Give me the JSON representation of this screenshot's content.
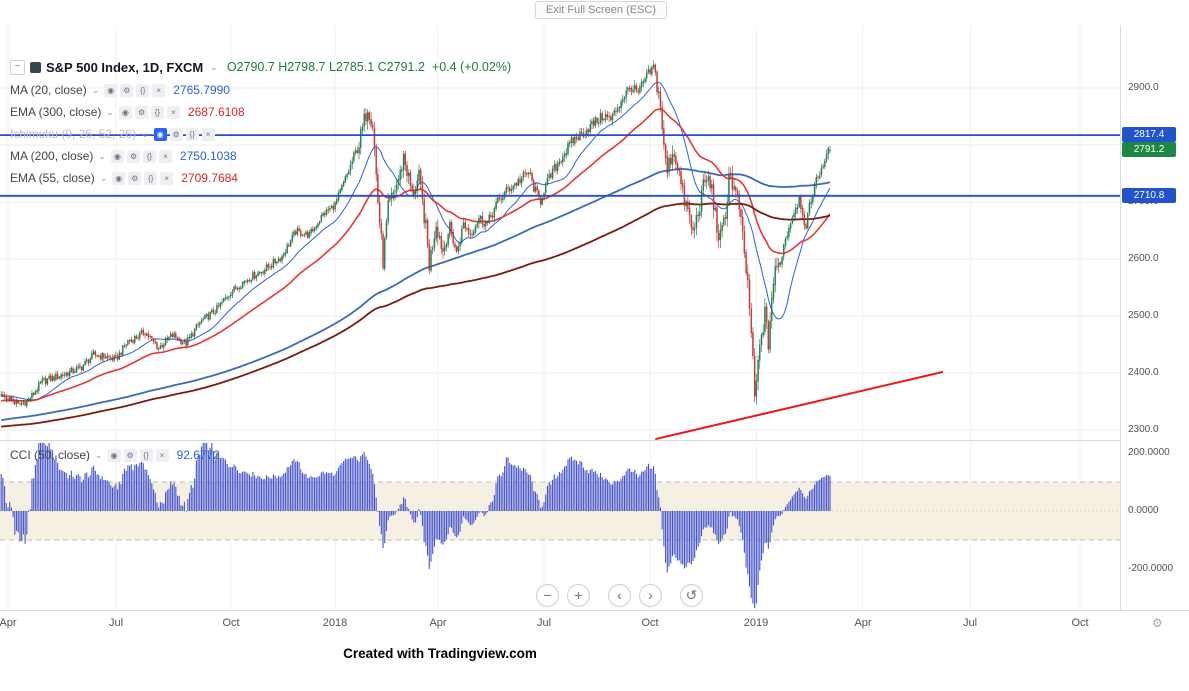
{
  "window": {
    "exit_fullscreen_label": "Exit Full Screen (ESC)"
  },
  "legend": {
    "collapse_glyph": "−",
    "chevron_glyph": "⌄",
    "symbol": {
      "title": "S&P 500 Index, 1D, FXCM",
      "ohlc": "O2790.7 H2798.7 L2785.1 C2791.2",
      "change": "+0.4 (+0.02%)",
      "value_color": "#1a7d3c"
    },
    "row_icons": [
      {
        "name": "visibility-icon",
        "glyph": "◉"
      },
      {
        "name": "settings-icon",
        "glyph": "⚙"
      },
      {
        "name": "source-icon",
        "glyph": "{}"
      },
      {
        "name": "delete-icon",
        "glyph": "×"
      }
    ],
    "indicators": [
      {
        "name": "MA (20, close)",
        "value": "2765.7990",
        "value_color": "#2a63d6",
        "muted": false
      },
      {
        "name": "EMA (300, close)",
        "value": "2687.6108",
        "value_color": "#d32b2b",
        "muted": false
      },
      {
        "name": "Ichimoku (9, 26, 52, 26)",
        "value": "",
        "value_color": "#b9bcc2",
        "muted": true
      },
      {
        "name": "MA (200, close)",
        "value": "2750.1038",
        "value_color": "#2a63d6",
        "muted": false
      },
      {
        "name": "EMA (55, close)",
        "value": "2709.7684",
        "value_color": "#d32b2b",
        "muted": false
      }
    ],
    "cci_row": {
      "name": "CCI (50, close)",
      "value": "92.6772",
      "value_color": "#2a63d6",
      "muted": false
    }
  },
  "axes": {
    "price_labels": [
      {
        "t": "2900.0",
        "v": 2900
      },
      {
        "t": "2800.0",
        "v": 2800
      },
      {
        "t": "2700.0",
        "v": 2700
      },
      {
        "t": "2600.0",
        "v": 2600
      },
      {
        "t": "2500.0",
        "v": 2500
      },
      {
        "t": "2400.0",
        "v": 2400
      },
      {
        "t": "2300.0",
        "v": 2300
      }
    ],
    "cci_labels": [
      {
        "t": "200.0000",
        "v": 200
      },
      {
        "t": "0.0000",
        "v": 0
      },
      {
        "t": "-200.0000",
        "v": -200
      }
    ],
    "time_labels": [
      {
        "label": "Apr",
        "day": 0
      },
      {
        "label": "Jul",
        "day": 63
      },
      {
        "label": "Oct",
        "day": 130
      },
      {
        "label": "2018",
        "day": 191
      },
      {
        "label": "Apr",
        "day": 251
      },
      {
        "label": "Jul",
        "day": 313
      },
      {
        "label": "Oct",
        "day": 375
      },
      {
        "label": "2019",
        "day": 437
      },
      {
        "label": "Apr",
        "day": 499
      },
      {
        "label": "Jul",
        "day": 562
      },
      {
        "label": "Oct",
        "day": 626
      }
    ],
    "settings_icon_glyph": "⚙"
  },
  "badges": [
    {
      "t": "2817.4",
      "v": 2817.4,
      "color": "#2353cc"
    },
    {
      "t": "2791.2",
      "v": 2791.2,
      "color": "#1d8746"
    },
    {
      "t": "2710.8",
      "v": 2710.8,
      "color": "#2353cc"
    }
  ],
  "toolbar": {
    "zoom_out": "−",
    "zoom_in": "+",
    "scroll_left": "‹",
    "scroll_right": "›",
    "reset": "↺"
  },
  "footer": {
    "credit": "Created with Tradingview.com"
  },
  "chart_data": {
    "type": "candlestick+histogram",
    "symbol": "S&P 500 Index",
    "timeframe": "1D",
    "exchange": "FXCM",
    "price_range_shown": [
      2300,
      2940
    ],
    "cci_range_shown": [
      -300,
      245
    ],
    "last_candle": {
      "o": 2790.7,
      "h": 2798.7,
      "l": 2785.1,
      "c": 2791.2
    },
    "candle_colors": {
      "up": "#1e8c4f",
      "up_border": "#156038",
      "down": "#df342f",
      "down_border": "#a8241f"
    },
    "prehistory_anchors": [
      [
        -320,
        2240
      ],
      [
        -260,
        2232
      ],
      [
        -200,
        2268
      ],
      [
        -140,
        2300
      ],
      [
        -80,
        2332
      ],
      [
        -30,
        2352
      ],
      [
        -10,
        2360
      ]
    ],
    "price_path_anchors": [
      [
        0,
        2357
      ],
      [
        6,
        2344
      ],
      [
        12,
        2352
      ],
      [
        20,
        2385
      ],
      [
        30,
        2395
      ],
      [
        42,
        2408
      ],
      [
        50,
        2432
      ],
      [
        58,
        2428
      ],
      [
        63,
        2424
      ],
      [
        70,
        2455
      ],
      [
        80,
        2472
      ],
      [
        88,
        2444
      ],
      [
        96,
        2466
      ],
      [
        104,
        2452
      ],
      [
        112,
        2488
      ],
      [
        122,
        2512
      ],
      [
        130,
        2542
      ],
      [
        140,
        2565
      ],
      [
        150,
        2582
      ],
      [
        160,
        2605
      ],
      [
        168,
        2648
      ],
      [
        176,
        2642
      ],
      [
        184,
        2678
      ],
      [
        191,
        2695
      ],
      [
        198,
        2748
      ],
      [
        205,
        2802
      ],
      [
        210,
        2868
      ],
      [
        213,
        2838
      ],
      [
        216,
        2702
      ],
      [
        219,
        2596
      ],
      [
        222,
        2688
      ],
      [
        226,
        2722
      ],
      [
        229,
        2748
      ],
      [
        231,
        2782
      ],
      [
        236,
        2714
      ],
      [
        240,
        2742
      ],
      [
        244,
        2654
      ],
      [
        246,
        2590
      ],
      [
        250,
        2664
      ],
      [
        254,
        2614
      ],
      [
        258,
        2656
      ],
      [
        262,
        2610
      ],
      [
        266,
        2662
      ],
      [
        270,
        2644
      ],
      [
        275,
        2672
      ],
      [
        280,
        2662
      ],
      [
        286,
        2700
      ],
      [
        292,
        2722
      ],
      [
        298,
        2736
      ],
      [
        304,
        2752
      ],
      [
        308,
        2718
      ],
      [
        311,
        2702
      ],
      [
        313,
        2722
      ],
      [
        318,
        2752
      ],
      [
        324,
        2782
      ],
      [
        330,
        2808
      ],
      [
        336,
        2822
      ],
      [
        342,
        2838
      ],
      [
        348,
        2852
      ],
      [
        352,
        2844
      ],
      [
        356,
        2866
      ],
      [
        360,
        2888
      ],
      [
        364,
        2902
      ],
      [
        368,
        2890
      ],
      [
        372,
        2916
      ],
      [
        375,
        2928
      ],
      [
        377,
        2934
      ],
      [
        379,
        2906
      ],
      [
        381,
        2872
      ],
      [
        383,
        2792
      ],
      [
        385,
        2754
      ],
      [
        388,
        2790
      ],
      [
        391,
        2768
      ],
      [
        394,
        2712
      ],
      [
        397,
        2684
      ],
      [
        400,
        2644
      ],
      [
        403,
        2682
      ],
      [
        406,
        2724
      ],
      [
        408,
        2742
      ],
      [
        411,
        2722
      ],
      [
        414,
        2654
      ],
      [
        416,
        2636
      ],
      [
        419,
        2672
      ],
      [
        421,
        2754
      ],
      [
        424,
        2722
      ],
      [
        427,
        2692
      ],
      [
        429,
        2634
      ],
      [
        432,
        2554
      ],
      [
        434,
        2474
      ],
      [
        436,
        2355
      ],
      [
        438,
        2414
      ],
      [
        440,
        2468
      ],
      [
        442,
        2502
      ],
      [
        444,
        2452
      ],
      [
        446,
        2535
      ],
      [
        448,
        2575
      ],
      [
        451,
        2596
      ],
      [
        454,
        2636
      ],
      [
        457,
        2666
      ],
      [
        459,
        2684
      ],
      [
        462,
        2706
      ],
      [
        464,
        2684
      ],
      [
        466,
        2650
      ],
      [
        468,
        2690
      ],
      [
        470,
        2718
      ],
      [
        472,
        2736
      ],
      [
        474,
        2752
      ],
      [
        476,
        2768
      ],
      [
        478,
        2782
      ],
      [
        480,
        2791.2
      ]
    ],
    "overlays": [
      {
        "name": "MA 20",
        "kind": "sma",
        "period": 20,
        "color": "#2a63d6",
        "width": 1
      },
      {
        "name": "MA 200",
        "kind": "sma",
        "period": 200,
        "color": "#3a6ab8",
        "width": 1.8
      },
      {
        "name": "EMA 55",
        "kind": "ema",
        "period": 55,
        "color": "#e83535",
        "width": 1.6
      },
      {
        "name": "EMA 300",
        "kind": "ema",
        "period": 300,
        "color": "#7c1a10",
        "width": 1.8
      },
      {
        "name": "Ichimoku (9, 26, 52, 26)",
        "kind": "ichimoku",
        "hidden": true
      }
    ],
    "horizontal_levels": [
      {
        "price": 2817.4,
        "color": "#2350c8"
      },
      {
        "price": 2710.8,
        "color": "#2350c8"
      }
    ],
    "trendline": {
      "d1": 378,
      "p1": 2284,
      "d2": 546,
      "p2": 2402,
      "color": "#f21616"
    },
    "lower_indicator": {
      "name": "CCI",
      "period": 50,
      "color": "#4353cf",
      "band": [
        -100,
        100
      ],
      "band_fill": "#f6f0e2",
      "last_value": 92.6772
    }
  }
}
